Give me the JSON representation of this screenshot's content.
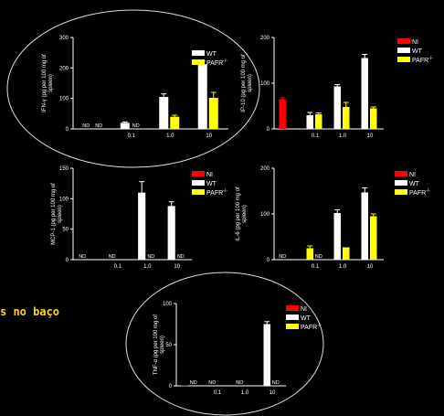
{
  "caption": "s no baço",
  "colors": {
    "NI": "#ff0000",
    "WT": "#ffffff",
    "PAFR": "#ffff00",
    "axis": "#ffffff",
    "circle": "#dddddd",
    "background": "#000000"
  },
  "chart_data": [
    {
      "type": "bar",
      "ylabel": "IFN-γ (pg per 100 mg of spleen)",
      "ylim": [
        0,
        300
      ],
      "yticks": [
        0,
        100,
        200,
        300
      ],
      "categories": [
        "",
        "0.1",
        "1.0",
        "10"
      ],
      "legend": [
        "WT",
        "PAFR-/-"
      ],
      "series": [
        {
          "name": "WT",
          "values": [
            null,
            20,
            105,
            212
          ],
          "errors": [
            0,
            3,
            10,
            10
          ]
        },
        {
          "name": "PAFR-/-",
          "values": [
            null,
            null,
            40,
            102
          ],
          "errors": [
            0,
            0,
            5,
            18
          ]
        }
      ],
      "nd_labels": [
        [
          "ND",
          "ND"
        ],
        [
          "",
          "ND"
        ],
        [
          "",
          ""
        ],
        [
          "",
          ""
        ]
      ]
    },
    {
      "type": "bar",
      "ylabel": "IP-10 (pg per 100 mg of spleen)",
      "ylim": [
        0,
        200
      ],
      "yticks": [
        0,
        100,
        200
      ],
      "categories": [
        "",
        "0.1",
        "1.0",
        "10"
      ],
      "legend": [
        "NI",
        "WT",
        "PAFR-/-"
      ],
      "series": [
        {
          "name": "NI",
          "values": [
            65,
            null,
            null,
            null
          ],
          "errors": [
            3,
            0,
            0,
            0
          ]
        },
        {
          "name": "WT",
          "values": [
            null,
            30,
            93,
            155
          ],
          "errors": [
            0,
            6,
            4,
            8
          ]
        },
        {
          "name": "PAFR-/-",
          "values": [
            null,
            32,
            48,
            45
          ],
          "errors": [
            0,
            3,
            10,
            3
          ]
        }
      ],
      "nd_labels": [
        [
          "",
          ""
        ],
        [
          "",
          ""
        ],
        [
          "",
          ""
        ],
        [
          "",
          ""
        ]
      ]
    },
    {
      "type": "bar",
      "ylabel": "MCP-1 (pg per 100 mg of spleen)",
      "ylim": [
        0,
        150
      ],
      "yticks": [
        0,
        50,
        100,
        150
      ],
      "categories": [
        "",
        "0.1",
        "1.0",
        "10"
      ],
      "legend": [
        "NI",
        "WT",
        "PAFR-/-"
      ],
      "series": [
        {
          "name": "NI",
          "values": [
            null,
            null,
            null,
            null
          ],
          "errors": [
            0,
            0,
            0,
            0
          ]
        },
        {
          "name": "WT",
          "values": [
            null,
            null,
            110,
            88
          ],
          "errors": [
            0,
            0,
            18,
            7
          ]
        },
        {
          "name": "PAFR-/-",
          "values": [
            null,
            null,
            null,
            null
          ],
          "errors": [
            0,
            0,
            0,
            0
          ]
        }
      ],
      "nd_labels": [
        [
          "ND",
          ""
        ],
        [
          "ND",
          ""
        ],
        [
          "",
          "ND"
        ],
        [
          "",
          "ND"
        ]
      ]
    },
    {
      "type": "bar",
      "ylabel": "IL-6 (pg per 100 mg of spleen)",
      "ylim": [
        0,
        200
      ],
      "yticks": [
        0,
        100,
        200
      ],
      "categories": [
        "",
        "0.1",
        "1.0",
        "10"
      ],
      "legend": [
        "NI",
        "WT",
        "PAFR-/-"
      ],
      "series": [
        {
          "name": "NI",
          "values": [
            null,
            null,
            null,
            null
          ],
          "errors": [
            0,
            0,
            0,
            0
          ]
        },
        {
          "name": "WT",
          "values": [
            null,
            null,
            102,
            147
          ],
          "errors": [
            0,
            0,
            7,
            10
          ]
        },
        {
          "name": "PAFR-/-",
          "values": [
            null,
            25,
            27,
            95
          ],
          "errors": [
            0,
            5,
            0,
            5
          ]
        }
      ],
      "nd_labels": [
        [
          "ND",
          ""
        ],
        [
          "ND",
          ""
        ],
        [
          "",
          ""
        ],
        [
          "",
          ""
        ]
      ]
    },
    {
      "type": "bar",
      "ylabel": "TNF-α (pg per 100 mg of spleen)",
      "ylim": [
        0,
        100
      ],
      "yticks": [
        0,
        50,
        100
      ],
      "categories": [
        "",
        "0.1",
        "1.0",
        "10"
      ],
      "legend": [
        "NI",
        "WT",
        "PAFR-/-"
      ],
      "series": [
        {
          "name": "NI",
          "values": [
            1,
            null,
            null,
            null
          ],
          "errors": [
            0,
            0,
            0,
            0
          ]
        },
        {
          "name": "WT",
          "values": [
            null,
            null,
            null,
            75
          ],
          "errors": [
            0,
            0,
            0,
            3
          ]
        },
        {
          "name": "PAFR-/-",
          "values": [
            null,
            null,
            null,
            null
          ],
          "errors": [
            0,
            0,
            0,
            0
          ]
        }
      ],
      "nd_labels": [
        [
          "ND",
          ""
        ],
        [
          "ND",
          ""
        ],
        [
          "ND",
          ""
        ],
        [
          "",
          "ND"
        ]
      ]
    }
  ]
}
